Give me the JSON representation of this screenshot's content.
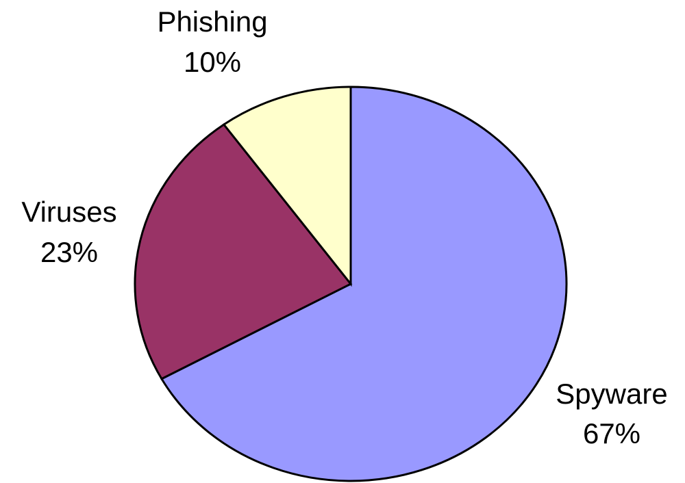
{
  "chart_data": {
    "type": "pie",
    "title": "",
    "slices": [
      {
        "label": "Spyware",
        "value": 67,
        "value_label": "67%",
        "color": "#9999ff"
      },
      {
        "label": "Viruses",
        "value": 23,
        "value_label": "23%",
        "color": "#993366"
      },
      {
        "label": "Phishing",
        "value": 10,
        "value_label": "10%",
        "color": "#ffffcc"
      }
    ],
    "start": "top",
    "direction": "clockwise",
    "legend": "none"
  }
}
